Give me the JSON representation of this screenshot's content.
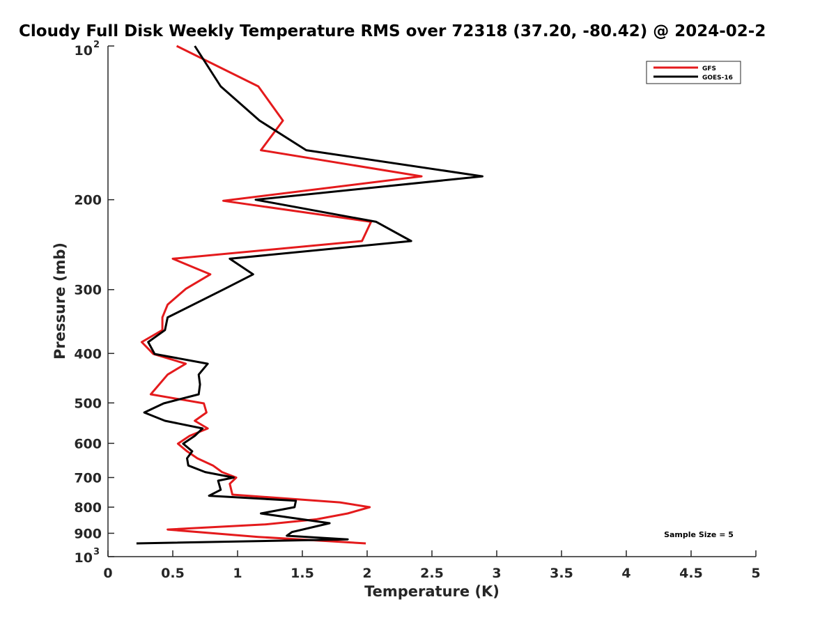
{
  "chart_data": {
    "type": "line",
    "title": "Cloudy Full Disk Weekly Temperature RMS over 72318 (37.20, -80.42) @ 2024-02-2",
    "xlabel": "Temperature (K)",
    "ylabel": "Pressure (mb)",
    "xlim": [
      0,
      5
    ],
    "ylim": [
      100,
      1000
    ],
    "yscale": "log",
    "y_reversed": true,
    "grid": false,
    "legend_placement": "top-right",
    "xticks": [
      "0",
      "0.5",
      "1",
      "1.5",
      "2",
      "2.5",
      "3",
      "3.5",
      "4",
      "4.5",
      "5"
    ],
    "xtick_values": [
      0,
      0.5,
      1,
      1.5,
      2,
      2.5,
      3,
      3.5,
      4,
      4.5,
      5
    ],
    "yticks": [
      {
        "value": 100,
        "base": "10",
        "exp": "2"
      },
      {
        "value": 200,
        "label": "200"
      },
      {
        "value": 300,
        "label": "300"
      },
      {
        "value": 400,
        "label": "400"
      },
      {
        "value": 500,
        "label": "500"
      },
      {
        "value": 600,
        "label": "600"
      },
      {
        "value": 700,
        "label": "700"
      },
      {
        "value": 800,
        "label": "800"
      },
      {
        "value": 900,
        "label": "900"
      },
      {
        "value": 1000,
        "base": "10",
        "exp": "3"
      }
    ],
    "annotation": "Sample Size = 5",
    "series": [
      {
        "name": "GFS",
        "color": "#e41a1c",
        "points": [
          [
            0.53,
            100
          ],
          [
            1.16,
            120
          ],
          [
            1.35,
            140
          ],
          [
            1.18,
            160
          ],
          [
            2.42,
            180
          ],
          [
            0.89,
            201
          ],
          [
            2.03,
            221
          ],
          [
            1.96,
            241
          ],
          [
            0.5,
            261
          ],
          [
            0.79,
            280
          ],
          [
            0.6,
            299
          ],
          [
            0.46,
            321
          ],
          [
            0.42,
            340
          ],
          [
            0.42,
            360
          ],
          [
            0.26,
            380
          ],
          [
            0.35,
            401
          ],
          [
            0.6,
            419
          ],
          [
            0.46,
            440
          ],
          [
            0.33,
            481
          ],
          [
            0.74,
            501
          ],
          [
            0.76,
            522
          ],
          [
            0.67,
            542
          ],
          [
            0.77,
            561
          ],
          [
            0.63,
            580
          ],
          [
            0.54,
            601
          ],
          [
            0.61,
            622
          ],
          [
            0.69,
            642
          ],
          [
            0.81,
            663
          ],
          [
            0.88,
            683
          ],
          [
            0.99,
            700
          ],
          [
            0.94,
            720
          ],
          [
            0.96,
            756
          ],
          [
            1.79,
            783
          ],
          [
            2.02,
            800
          ],
          [
            1.85,
            823
          ],
          [
            1.61,
            845
          ],
          [
            1.21,
            865
          ],
          [
            0.46,
            885
          ],
          [
            1.16,
            915
          ],
          [
            1.99,
            942
          ]
        ]
      },
      {
        "name": "GOES-16",
        "color": "#000000",
        "points": [
          [
            0.67,
            100
          ],
          [
            0.87,
            120
          ],
          [
            1.17,
            140
          ],
          [
            1.53,
            160
          ],
          [
            2.89,
            180
          ],
          [
            1.14,
            200
          ],
          [
            2.07,
            221
          ],
          [
            2.34,
            241
          ],
          [
            0.94,
            261
          ],
          [
            1.12,
            280
          ],
          [
            0.9,
            299
          ],
          [
            0.46,
            340
          ],
          [
            0.44,
            360
          ],
          [
            0.31,
            380
          ],
          [
            0.36,
            401
          ],
          [
            0.77,
            419
          ],
          [
            0.7,
            440
          ],
          [
            0.71,
            460
          ],
          [
            0.7,
            481
          ],
          [
            0.43,
            501
          ],
          [
            0.28,
            522
          ],
          [
            0.44,
            542
          ],
          [
            0.73,
            561
          ],
          [
            0.67,
            580
          ],
          [
            0.58,
            601
          ],
          [
            0.65,
            622
          ],
          [
            0.61,
            642
          ],
          [
            0.62,
            663
          ],
          [
            0.75,
            683
          ],
          [
            0.97,
            700
          ],
          [
            0.85,
            710
          ],
          [
            0.87,
            740
          ],
          [
            0.78,
            760
          ],
          [
            1.45,
            777
          ],
          [
            1.44,
            800
          ],
          [
            1.18,
            823
          ],
          [
            1.71,
            860
          ],
          [
            1.42,
            895
          ],
          [
            1.38,
            910
          ],
          [
            1.85,
            925
          ],
          [
            0.22,
            942
          ]
        ]
      }
    ]
  }
}
